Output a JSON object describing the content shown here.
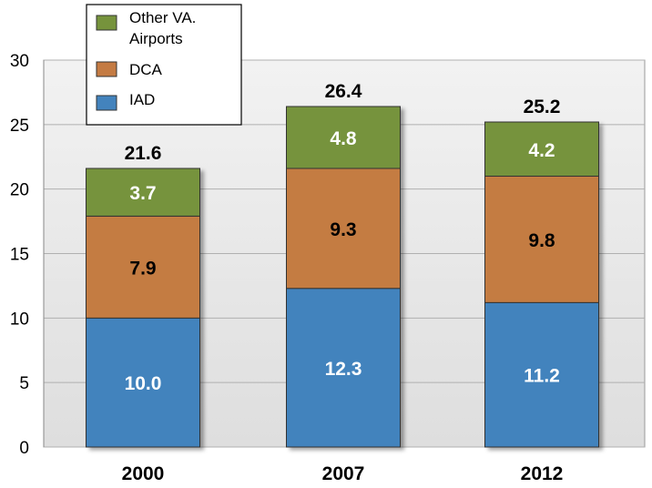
{
  "chart_data": {
    "type": "bar",
    "stacked": true,
    "categories": [
      "2000",
      "2007",
      "2012"
    ],
    "series": [
      {
        "name": "IAD",
        "values": [
          10.0,
          12.3,
          11.2
        ],
        "color": "#4383BD",
        "label_color": "#ffffff"
      },
      {
        "name": "DCA",
        "values": [
          7.9,
          9.3,
          9.8
        ],
        "color": "#C47B43",
        "label_color": "#000000"
      },
      {
        "name": "Other VA. Airports",
        "values": [
          3.7,
          4.8,
          4.2
        ],
        "color": "#76933C",
        "label_color": "#ffffff"
      }
    ],
    "value_labels": [
      [
        "10.0",
        "12.3",
        "11.2"
      ],
      [
        "7.9",
        "9.3",
        "9.8"
      ],
      [
        "3.7",
        "4.8",
        "4.2"
      ]
    ],
    "totals": [
      "21.6",
      "26.4",
      "25.2"
    ],
    "ylim": [
      0,
      30
    ],
    "yticks": [
      "0",
      "5",
      "10",
      "15",
      "20",
      "25",
      "30"
    ],
    "legend_lines": [
      [
        "Other VA.",
        "Airports"
      ],
      [
        "DCA"
      ],
      [
        "IAD"
      ]
    ],
    "legend_placement": "top-left",
    "grid": true,
    "title": "",
    "xlabel": "",
    "ylabel": ""
  }
}
